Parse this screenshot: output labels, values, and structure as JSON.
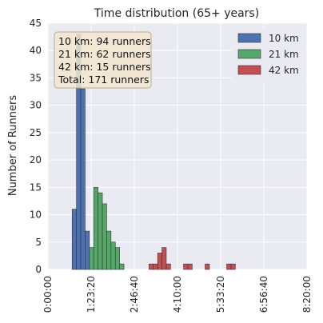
{
  "chart_data": {
    "type": "bar",
    "title": "Time distribution (65+ years)",
    "xlabel": "",
    "ylabel": "Number of Runners",
    "ylim": [
      0,
      45
    ],
    "xlim": [
      0,
      30000
    ],
    "grid": true,
    "legend_position": "top-right",
    "yticks": [
      0,
      5,
      10,
      15,
      20,
      25,
      30,
      35,
      40,
      45
    ],
    "xticks": [
      {
        "value": 0,
        "label": "0:00:00"
      },
      {
        "value": 5000,
        "label": "1:23:20"
      },
      {
        "value": 10000,
        "label": "2:46:40"
      },
      {
        "value": 15000,
        "label": "4:10:00"
      },
      {
        "value": 20000,
        "label": "5:33:20"
      },
      {
        "value": 25000,
        "label": "6:56:40"
      },
      {
        "value": 30000,
        "label": "8:20:00"
      }
    ],
    "bin_width": 500,
    "series": [
      {
        "name": "10 km",
        "color": "#4c72b0",
        "bins": [
          {
            "start": 2800,
            "count": 11
          },
          {
            "start": 3300,
            "count": 43
          },
          {
            "start": 3800,
            "count": 33
          },
          {
            "start": 4300,
            "count": 7
          }
        ]
      },
      {
        "name": "21 km",
        "color": "#55a868",
        "bins": [
          {
            "start": 4800,
            "count": 4
          },
          {
            "start": 5300,
            "count": 15
          },
          {
            "start": 5800,
            "count": 14
          },
          {
            "start": 6300,
            "count": 12
          },
          {
            "start": 6800,
            "count": 7
          },
          {
            "start": 7300,
            "count": 5
          },
          {
            "start": 7800,
            "count": 4
          },
          {
            "start": 8300,
            "count": 1
          }
        ]
      },
      {
        "name": "42 km",
        "color": "#c44e52",
        "bins": [
          {
            "start": 11700,
            "count": 1
          },
          {
            "start": 12200,
            "count": 1
          },
          {
            "start": 12700,
            "count": 3
          },
          {
            "start": 13200,
            "count": 4
          },
          {
            "start": 13700,
            "count": 1
          },
          {
            "start": 15700,
            "count": 1
          },
          {
            "start": 16200,
            "count": 1
          },
          {
            "start": 18200,
            "count": 1
          },
          {
            "start": 20700,
            "count": 1
          },
          {
            "start": 21200,
            "count": 1
          }
        ]
      }
    ],
    "annotation": {
      "lines": [
        "10 km: 94 runners",
        "21 km: 62 runners",
        "42 km: 15 runners",
        "Total: 171 runners"
      ]
    }
  },
  "colors": {
    "plot_bg": "#eaeaf2",
    "grid": "#ffffff",
    "annotation_bg": "#f3e6cf",
    "annotation_border": "#b8aa94",
    "legend_bg": "#eaeaf2"
  }
}
